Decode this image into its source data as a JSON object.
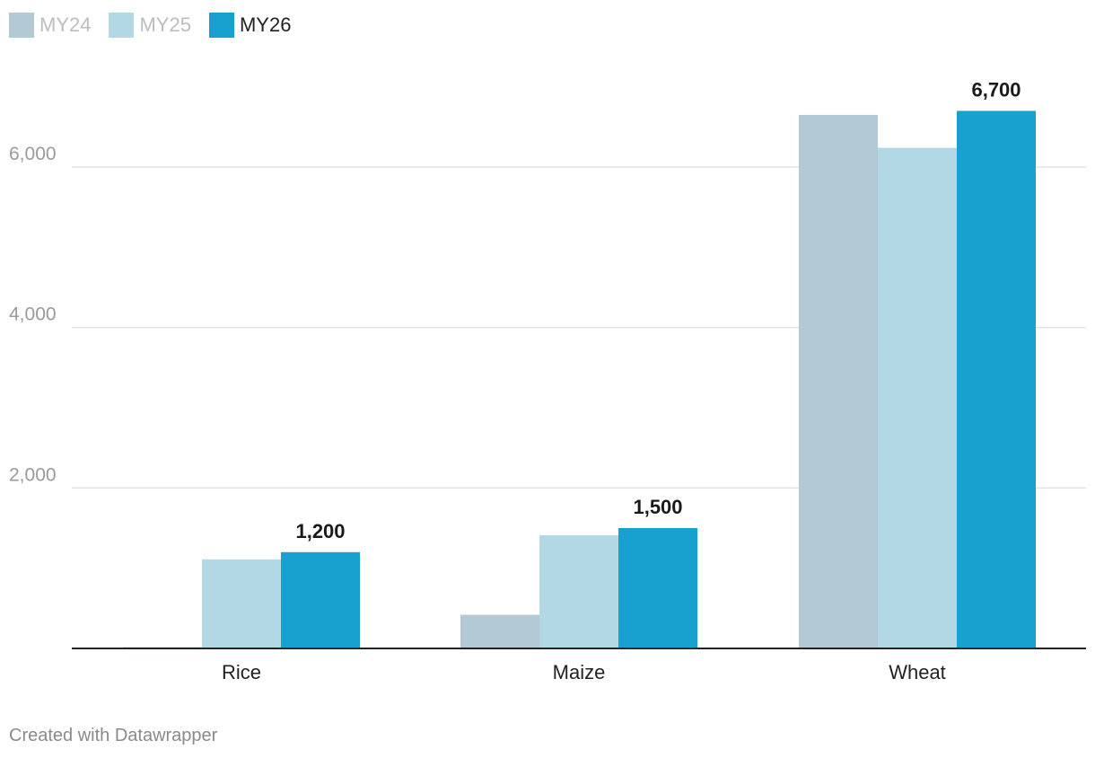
{
  "chart_data": {
    "type": "bar",
    "categories": [
      "Rice",
      "Maize",
      "Wheat"
    ],
    "series": [
      {
        "name": "MY24",
        "color": "#b3c9d6",
        "values": [
          15,
          420,
          6650
        ]
      },
      {
        "name": "MY25",
        "color": "#b2d8e6",
        "values": [
          1110,
          1410,
          6240
        ]
      },
      {
        "name": "MY26",
        "color": "#18a1ce",
        "values": [
          1200,
          1500,
          6700
        ]
      }
    ],
    "data_labels": {
      "series": "MY26",
      "labels": [
        "1,200",
        "1,500",
        "6,700"
      ]
    },
    "y_ticks": [
      {
        "value": 2000,
        "label": "2,000"
      },
      {
        "value": 4000,
        "label": "4,000"
      },
      {
        "value": 6000,
        "label": "6,000"
      }
    ],
    "ylim": [
      0,
      7000
    ],
    "grid": true,
    "legend_position": "top-left",
    "title": "",
    "xlabel": "",
    "ylabel": ""
  },
  "legend": {
    "items": [
      {
        "label": "MY24",
        "color": "#b3c9d6",
        "active": false
      },
      {
        "label": "MY25",
        "color": "#b2d8e6",
        "active": false
      },
      {
        "label": "MY26",
        "color": "#18a1ce",
        "active": true
      }
    ]
  },
  "footer": {
    "credit": "Created with Datawrapper"
  }
}
